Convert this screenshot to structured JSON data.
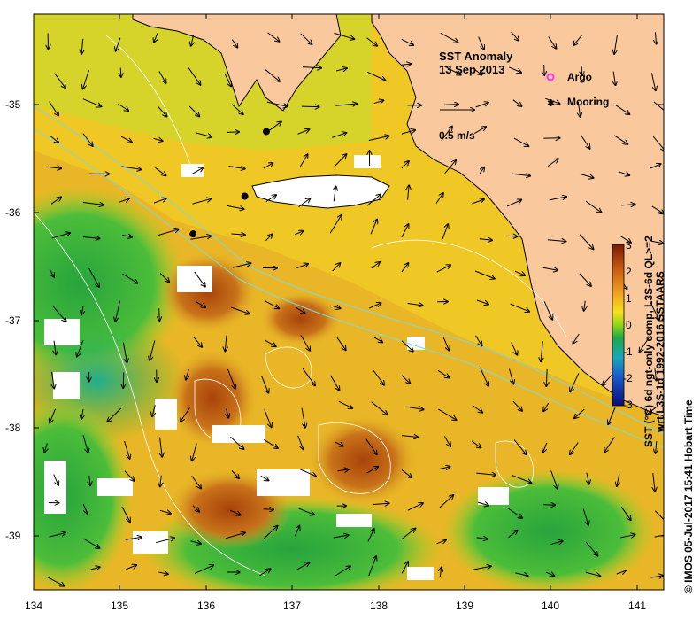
{
  "title": "SST Anomaly",
  "date": "13 Sep 2013",
  "legend": {
    "argo": "Argo",
    "mooring": "Mooring",
    "argo_color": "#ff33ff",
    "mooring_color": "#000000"
  },
  "scale_label": "0.5 m/s",
  "colorbar": {
    "title_line1": "SST (°C) 6d ngt-only comp, L3S-6d QL>=2",
    "title_line2": "wrt L3S-1d 1992-2016 SSTAARS",
    "ticks": [
      "3",
      "2",
      "1",
      "0",
      "-1",
      "-2",
      "-3"
    ]
  },
  "credit": "© IMOS 05-Jul-2017 15:41 Hobart Time",
  "axes": {
    "x_ticks": [
      "134",
      "135",
      "136",
      "137",
      "138",
      "139",
      "140",
      "141"
    ],
    "y_ticks": [
      "-35",
      "-36",
      "-37",
      "-38",
      "-39"
    ]
  },
  "moorings": [
    {
      "lon": 136.7,
      "lat": -35.25
    },
    {
      "lon": 136.45,
      "lat": -35.85
    },
    {
      "lon": 135.85,
      "lat": -36.2
    }
  ],
  "colors": {
    "land": "#f9c89c",
    "ocean_warm": "#e8b422",
    "ocean_hot": "#b5520e",
    "ocean_cool": "#2fb23a"
  }
}
